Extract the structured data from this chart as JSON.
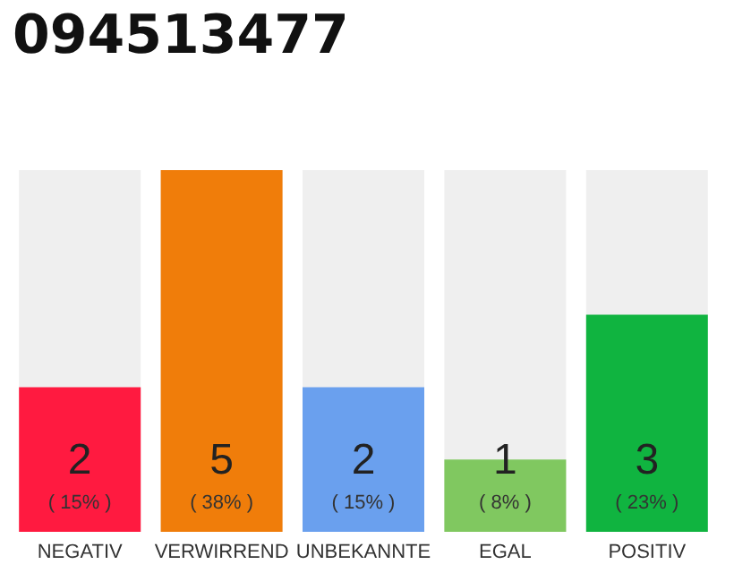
{
  "chart_data": {
    "type": "bar",
    "title": "094513477",
    "categories": [
      "NEGATIV",
      "VERWIRREND",
      "UNBEKANNTE",
      "EGAL",
      "POSITIV"
    ],
    "values": [
      2,
      5,
      2,
      1,
      3
    ],
    "colors": [
      "#ff1a40",
      "#f07d0a",
      "#6aa0ee",
      "#80c860",
      "#10b440"
    ],
    "value_labels": [
      "2\n( 15% )",
      "5\n( 38% )",
      "2\n( 15% )",
      "1\n( 8% )",
      "3\n( 23% )"
    ],
    "ylim": [
      0,
      5
    ]
  }
}
